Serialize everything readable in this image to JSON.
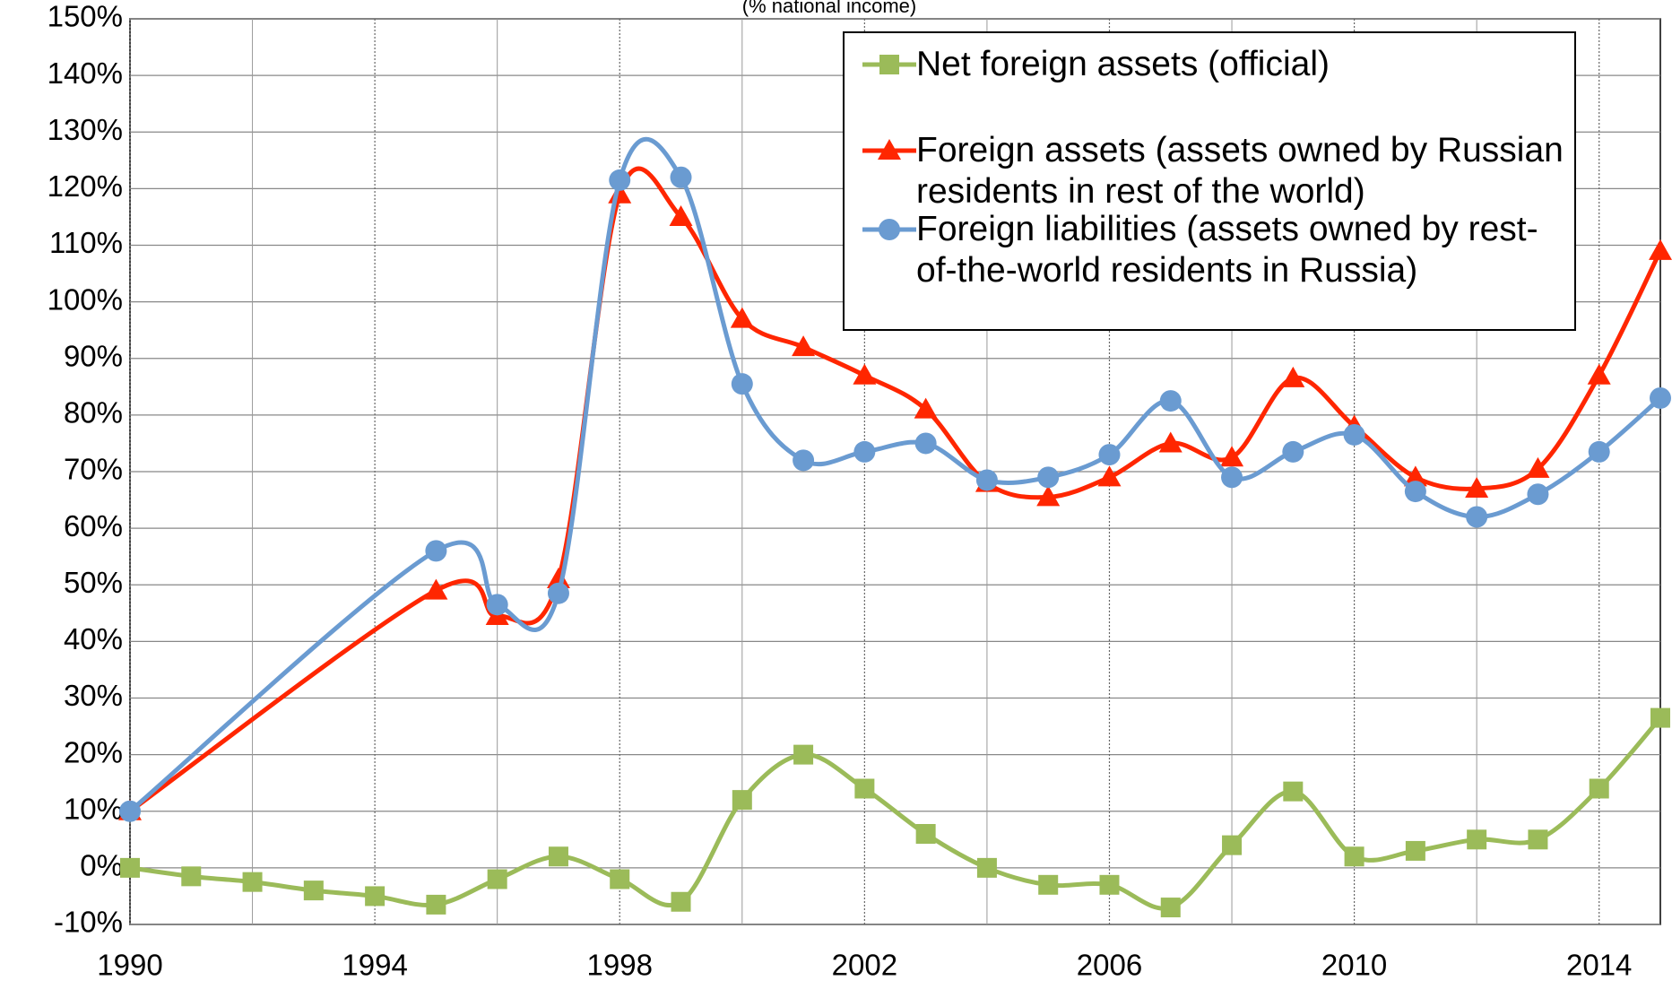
{
  "chart_data": {
    "type": "line",
    "subtitle": "(% national income)",
    "xlim": [
      1990,
      2015
    ],
    "xticks": [
      1990,
      1994,
      1998,
      2002,
      2006,
      2010,
      2014
    ],
    "ylim": [
      -10,
      150
    ],
    "yticks": [
      {
        "value": -10,
        "label": "-10%"
      },
      {
        "value": 0,
        "label": "0%"
      },
      {
        "value": 10,
        "label": "10%"
      },
      {
        "value": 20,
        "label": "20%"
      },
      {
        "value": 30,
        "label": "30%"
      },
      {
        "value": 40,
        "label": "40%"
      },
      {
        "value": 50,
        "label": "50%"
      },
      {
        "value": 60,
        "label": "60%"
      },
      {
        "value": 70,
        "label": "70%"
      },
      {
        "value": 80,
        "label": "80%"
      },
      {
        "value": 90,
        "label": "90%"
      },
      {
        "value": 100,
        "label": "100%"
      },
      {
        "value": 110,
        "label": "110%"
      },
      {
        "value": 120,
        "label": "120%"
      },
      {
        "value": 130,
        "label": "130%"
      },
      {
        "value": 140,
        "label": "140%"
      },
      {
        "value": 150,
        "label": "150%"
      }
    ],
    "grid": true,
    "legend": "upper right",
    "series": [
      {
        "name": "Net foreign assets (official)",
        "color": "#9bbb59",
        "marker": "square",
        "x": [
          1990,
          1991,
          1992,
          1993,
          1994,
          1995,
          1996,
          1997,
          1998,
          1999,
          2000,
          2001,
          2002,
          2003,
          2004,
          2005,
          2006,
          2007,
          2008,
          2009,
          2010,
          2011,
          2012,
          2013,
          2014,
          2015
        ],
        "values": [
          0,
          -1.5,
          -2.5,
          -4,
          -5,
          -6.5,
          -2,
          2,
          -2,
          -6,
          12,
          20,
          14,
          6,
          0,
          -3,
          -3,
          -7,
          4,
          13.5,
          2,
          3,
          5,
          5,
          14,
          26.5
        ]
      },
      {
        "name": "Foreign assets (assets owned by Russian residents in rest of the world)",
        "color": "#ff2600",
        "marker": "triangle",
        "x": [
          1990,
          1995,
          1996,
          1997,
          1998,
          1999,
          2000,
          2001,
          2002,
          2003,
          2004,
          2005,
          2006,
          2007,
          2008,
          2009,
          2010,
          2011,
          2012,
          2013,
          2014,
          2015
        ],
        "values": [
          10,
          49,
          44.5,
          51,
          119,
          115,
          97,
          92,
          87,
          81,
          68,
          65.5,
          69,
          75,
          72.5,
          86.5,
          78,
          69,
          67,
          70.5,
          87,
          109
        ]
      },
      {
        "name": "Foreign liabilities (assets owned by rest-of-the-world residents in Russia)",
        "color": "#6a9bd1",
        "marker": "circle",
        "x": [
          1990,
          1995,
          1996,
          1997,
          1998,
          1999,
          2000,
          2001,
          2002,
          2003,
          2004,
          2005,
          2006,
          2007,
          2008,
          2009,
          2010,
          2011,
          2012,
          2013,
          2014,
          2015
        ],
        "values": [
          10,
          56,
          46.5,
          48.5,
          121.5,
          122,
          85.5,
          72,
          73.5,
          75,
          68.5,
          69,
          73,
          82.5,
          69,
          73.5,
          76.5,
          66.5,
          62,
          66,
          73.5,
          83
        ]
      }
    ]
  }
}
